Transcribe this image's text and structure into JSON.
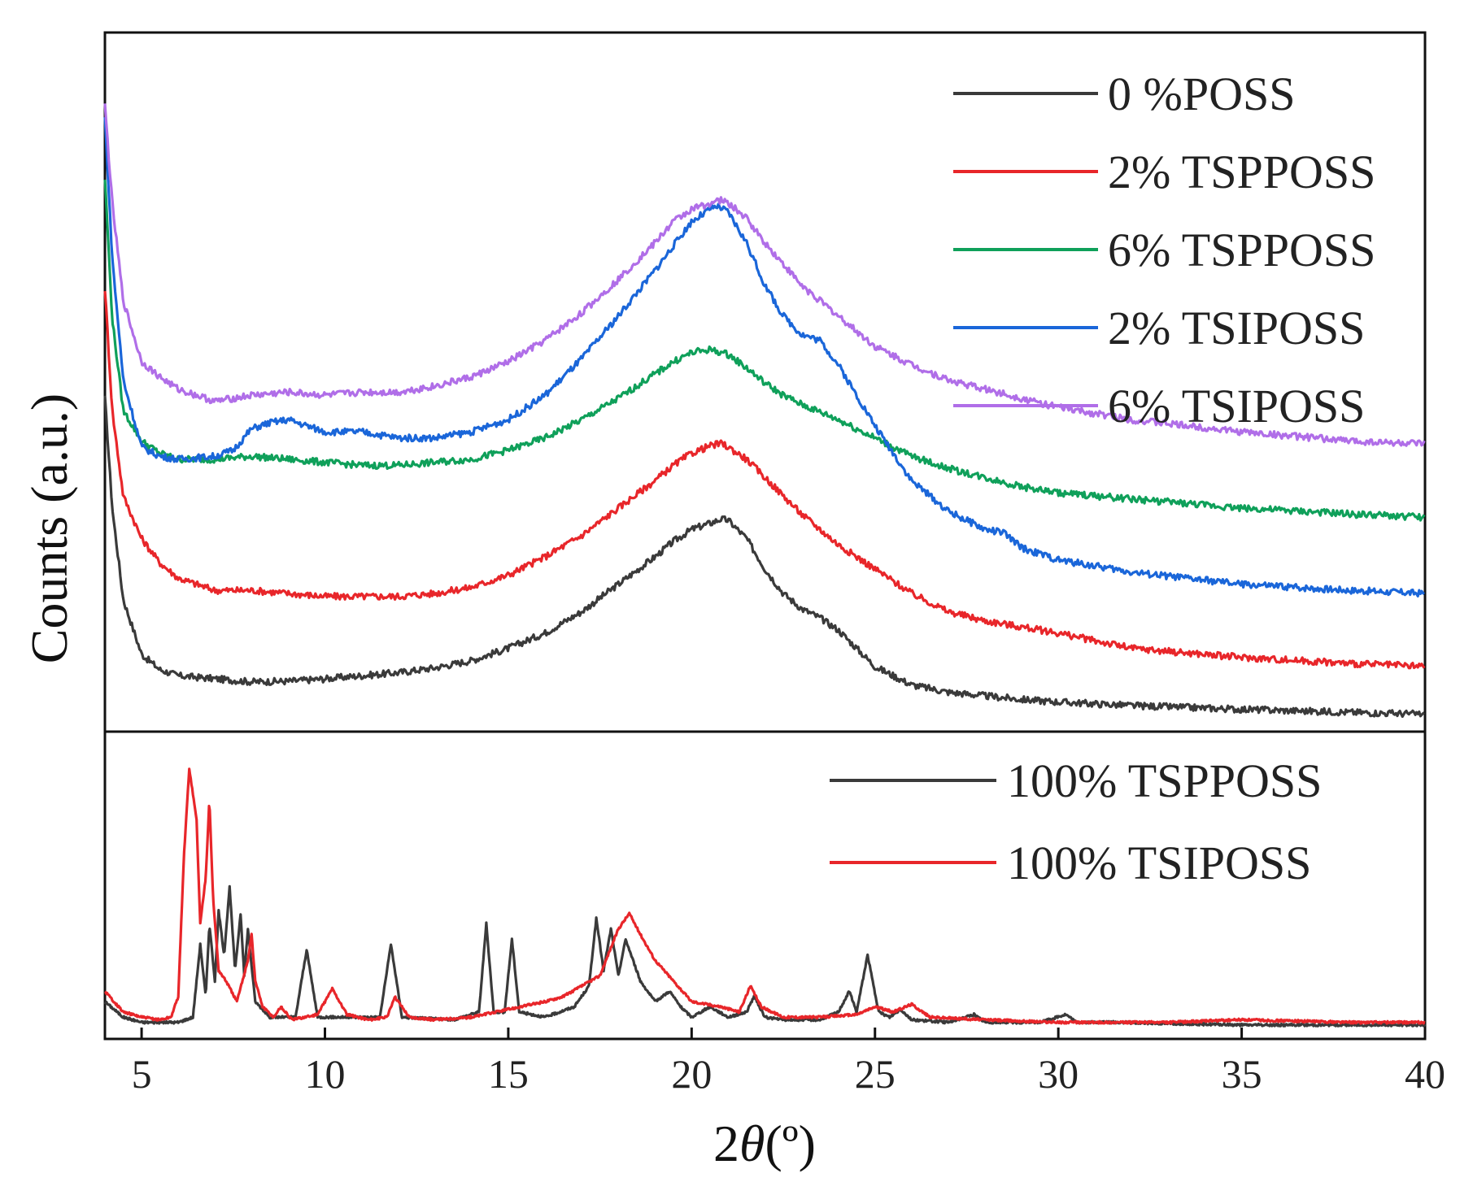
{
  "chart_data": [
    {
      "panel": "top",
      "type": "line",
      "xlabel_prefix": "2",
      "xlabel_symbol": "θ",
      "xlabel_unit": "(º)",
      "ylabel": "Counts (a.u.)",
      "xlim": [
        4,
        40
      ],
      "xticks": [
        "5",
        "10",
        "15",
        "20",
        "25",
        "30",
        "35",
        "40"
      ],
      "xtick_values": [
        5,
        10,
        15,
        20,
        25,
        30,
        35,
        40
      ],
      "ylim": [
        0,
        100
      ],
      "yticks": "none (arbitrary units)",
      "legend_position": "top-right",
      "series": [
        {
          "name": "0 %POSS",
          "color": "#3a3a3a",
          "x": [
            4.0,
            4.2,
            4.5,
            5.0,
            5.5,
            6.0,
            7.0,
            8.0,
            9.0,
            10.0,
            11.0,
            12.0,
            13.0,
            14.0,
            15.0,
            16.0,
            17.0,
            18.0,
            19.0,
            19.5,
            20.0,
            20.5,
            20.8,
            21.0,
            21.5,
            22.0,
            22.5,
            23.0,
            23.5,
            24.0,
            24.5,
            25.0,
            26.0,
            27.0,
            28.0,
            29.0,
            30.0,
            32.0,
            35.0,
            38.0,
            40.0
          ],
          "y": [
            52,
            34,
            19,
            10,
            7.5,
            6.5,
            6,
            5.5,
            5.6,
            6,
            6.5,
            7,
            7.8,
            9,
            11,
            13.5,
            17,
            21.5,
            26,
            28.5,
            30.5,
            31.5,
            32.2,
            32,
            29,
            24,
            20,
            17.5,
            16,
            14,
            11,
            8,
            5,
            3.8,
            3.2,
            2.6,
            2.2,
            1.6,
            1.0,
            0.5,
            0.2
          ]
        },
        {
          "name": "2% TSPPOSS",
          "color": "#e8262a",
          "x": [
            4.0,
            4.2,
            4.5,
            5.0,
            5.5,
            6.0,
            7.0,
            8.0,
            9.0,
            10.0,
            11.0,
            12.0,
            13.0,
            14.0,
            15.0,
            16.0,
            17.0,
            18.0,
            19.0,
            19.5,
            20.0,
            20.5,
            20.8,
            21.0,
            21.5,
            22.0,
            22.5,
            23.0,
            24.0,
            25.0,
            26.0,
            27.0,
            28.0,
            29.0,
            30.0,
            32.0,
            35.0,
            38.0,
            40.0
          ],
          "y": [
            70,
            50,
            36,
            29,
            25,
            22.5,
            20.5,
            20.5,
            20,
            19.5,
            19.5,
            19.5,
            20,
            21,
            23,
            26,
            29.5,
            34,
            38.5,
            41,
            43,
            44.2,
            44.6,
            44,
            42,
            39,
            36,
            33,
            28,
            24,
            20,
            17,
            15.5,
            14.5,
            13.5,
            11,
            9.5,
            8.5,
            8
          ]
        },
        {
          "name": "6% TSPPOSS",
          "color": "#0fa05a",
          "x": [
            4.0,
            4.2,
            4.5,
            5.0,
            5.5,
            6.0,
            7.0,
            8.0,
            9.0,
            10.0,
            11.0,
            12.0,
            13.0,
            14.0,
            15.0,
            16.0,
            17.0,
            18.0,
            19.0,
            19.5,
            20.0,
            20.5,
            21.0,
            21.5,
            22.0,
            22.5,
            23.0,
            24.0,
            25.0,
            26.0,
            27.0,
            28.0,
            29.0,
            30.0,
            32.0,
            35.0,
            38.0,
            40.0
          ],
          "y": [
            88,
            65,
            50,
            45,
            43,
            42,
            42,
            42.5,
            42,
            41.5,
            41,
            41,
            41.5,
            42,
            43.5,
            45.5,
            48.5,
            52,
            56,
            58,
            59.5,
            60,
            59.2,
            57,
            54.5,
            52.5,
            51,
            48.5,
            45.5,
            42.5,
            40.5,
            39,
            37.5,
            36.5,
            35.5,
            34,
            33,
            32.5
          ]
        },
        {
          "name": "2% TSIPOSS",
          "color": "#1a66d9",
          "x": [
            4.0,
            4.2,
            4.5,
            5.0,
            5.5,
            6.0,
            7.0,
            7.5,
            8.0,
            8.5,
            9.0,
            9.5,
            10.0,
            11.0,
            12.0,
            13.0,
            14.0,
            15.0,
            16.0,
            17.0,
            18.0,
            19.0,
            19.5,
            20.0,
            20.5,
            20.7,
            21.0,
            21.5,
            22.0,
            22.5,
            23.0,
            23.5,
            24.0,
            24.5,
            25.0,
            26.0,
            27.0,
            28.0,
            28.5,
            29.0,
            30.0,
            32.0,
            35.0,
            38.0,
            40.0
          ],
          "y": [
            98,
            75,
            55,
            44,
            42.5,
            42,
            42.5,
            43.5,
            47,
            48,
            48.5,
            47.5,
            46.5,
            46.5,
            45.5,
            45.5,
            46.5,
            48.5,
            52.5,
            58.5,
            65.5,
            73,
            77,
            81,
            83,
            83.5,
            82.5,
            77.5,
            70.5,
            65.5,
            62.5,
            61.5,
            57.5,
            52.5,
            47.5,
            38.5,
            33.5,
            30.5,
            30,
            27.5,
            25.5,
            23.5,
            21.5,
            20.5,
            20
          ]
        },
        {
          "name": "6% TSIPOSS",
          "color": "#b06ee8",
          "x": [
            4.0,
            4.2,
            4.5,
            5.0,
            5.5,
            6.0,
            7.0,
            8.0,
            9.0,
            10.0,
            11.0,
            12.0,
            13.0,
            14.0,
            15.0,
            16.0,
            17.0,
            18.0,
            19.0,
            19.5,
            20.0,
            20.5,
            20.8,
            21.0,
            21.5,
            22.0,
            22.5,
            23.0,
            24.0,
            25.0,
            26.0,
            27.0,
            28.0,
            29.0,
            30.0,
            32.0,
            35.0,
            38.0,
            40.0
          ],
          "y": [
            100,
            84,
            68,
            58,
            55.5,
            53.5,
            51.5,
            52.5,
            53,
            52.5,
            53,
            53,
            54,
            55.5,
            58,
            61.5,
            66,
            71.5,
            77.5,
            81,
            83,
            84,
            84.5,
            84,
            81.5,
            77.5,
            74,
            70.5,
            65.5,
            60.5,
            57.5,
            55,
            53.5,
            52,
            50.5,
            48.5,
            46.5,
            45,
            44.5
          ]
        }
      ]
    },
    {
      "panel": "bottom",
      "type": "line",
      "xlim": [
        4,
        40
      ],
      "ylim": [
        0,
        100
      ],
      "legend_position": "top-right",
      "series": [
        {
          "name": "100% TSPPOSS",
          "color": "#3a3a3a",
          "x": [
            4.0,
            4.5,
            5.0,
            5.5,
            6.0,
            6.4,
            6.6,
            6.75,
            6.85,
            7.0,
            7.1,
            7.25,
            7.4,
            7.55,
            7.7,
            7.8,
            7.9,
            8.1,
            8.5,
            9.2,
            9.5,
            9.8,
            10.5,
            11.5,
            11.8,
            12.1,
            13.5,
            14.2,
            14.4,
            14.6,
            14.9,
            15.1,
            15.3,
            16.0,
            16.8,
            17.2,
            17.4,
            17.6,
            17.8,
            18.0,
            18.2,
            18.6,
            19.0,
            19.4,
            19.7,
            20.0,
            20.5,
            21.0,
            21.5,
            21.7,
            22.0,
            22.5,
            23.5,
            24.0,
            24.3,
            24.5,
            24.8,
            25.1,
            25.4,
            25.7,
            26.0,
            27.0,
            27.7,
            28.0,
            29.5,
            30.2,
            30.5,
            31.5,
            35.0,
            40.0
          ],
          "y": [
            10,
            4,
            2,
            2,
            2,
            4,
            32,
            12,
            40,
            18,
            45,
            28,
            54,
            22,
            44,
            20,
            38,
            10,
            4,
            4,
            30,
            4,
            4,
            4,
            32,
            4,
            3,
            6,
            40,
            6,
            6,
            34,
            6,
            4,
            8,
            16,
            42,
            22,
            38,
            20,
            34,
            18,
            10,
            14,
            8,
            4,
            8,
            4,
            6,
            12,
            4,
            3,
            3,
            6,
            14,
            6,
            28,
            6,
            4,
            7,
            3,
            2,
            5,
            2,
            2,
            5,
            2,
            2,
            1,
            1
          ]
        },
        {
          "name": "100% TSIPOSS",
          "color": "#e8262a",
          "x": [
            4.0,
            4.5,
            5.0,
            5.5,
            5.8,
            6.0,
            6.15,
            6.3,
            6.5,
            6.6,
            6.75,
            6.85,
            6.95,
            7.1,
            7.3,
            7.6,
            7.9,
            8.0,
            8.1,
            8.3,
            8.6,
            8.8,
            9.1,
            9.8,
            10.2,
            10.6,
            11.2,
            11.7,
            11.9,
            12.3,
            13.0,
            14.0,
            15.0,
            16.0,
            16.5,
            17.0,
            17.5,
            18.0,
            18.3,
            18.6,
            19.0,
            19.5,
            20.0,
            20.8,
            21.3,
            21.6,
            21.9,
            22.5,
            23.5,
            24.5,
            25.0,
            25.5,
            26.0,
            26.5,
            28.0,
            30.0,
            33.0,
            35.0,
            38.0,
            40.0
          ],
          "y": [
            14,
            6,
            4,
            3,
            4,
            12,
            65,
            100,
            80,
            40,
            58,
            88,
            50,
            22,
            18,
            10,
            26,
            36,
            18,
            8,
            4,
            8,
            3,
            5,
            15,
            5,
            3,
            4,
            12,
            4,
            3,
            4,
            7,
            10,
            12,
            16,
            20,
            38,
            44,
            36,
            26,
            18,
            10,
            8,
            6,
            16,
            8,
            4,
            4,
            5,
            8,
            6,
            9,
            4,
            3,
            2,
            2,
            3,
            2,
            2
          ]
        }
      ]
    }
  ]
}
